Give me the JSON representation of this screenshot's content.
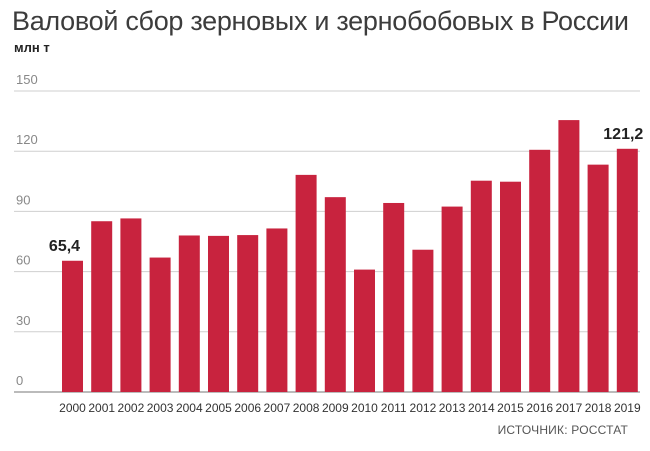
{
  "title": "Валовой сбор зерновых и зернобобовых в России",
  "unit": "млн т",
  "source": "ИСТОЧНИК: РОССТАТ",
  "chart_data": {
    "type": "bar",
    "categories": [
      "2000",
      "2001",
      "2002",
      "2003",
      "2004",
      "2005",
      "2006",
      "2007",
      "2008",
      "2009",
      "2010",
      "2011",
      "2012",
      "2013",
      "2014",
      "2015",
      "2016",
      "2017",
      "2018",
      "2019"
    ],
    "values": [
      65.4,
      85.1,
      86.5,
      67.0,
      78.0,
      77.8,
      78.2,
      81.5,
      108.2,
      97.1,
      61.0,
      94.2,
      70.9,
      92.4,
      105.3,
      104.8,
      120.7,
      135.5,
      113.3,
      121.2
    ],
    "data_labels": {
      "0": "65,4",
      "19": "121,2"
    },
    "ylim": [
      0,
      150
    ],
    "yticks": [
      0,
      30,
      60,
      90,
      120,
      150
    ],
    "grid": true,
    "bar_color": "#c8233e"
  }
}
